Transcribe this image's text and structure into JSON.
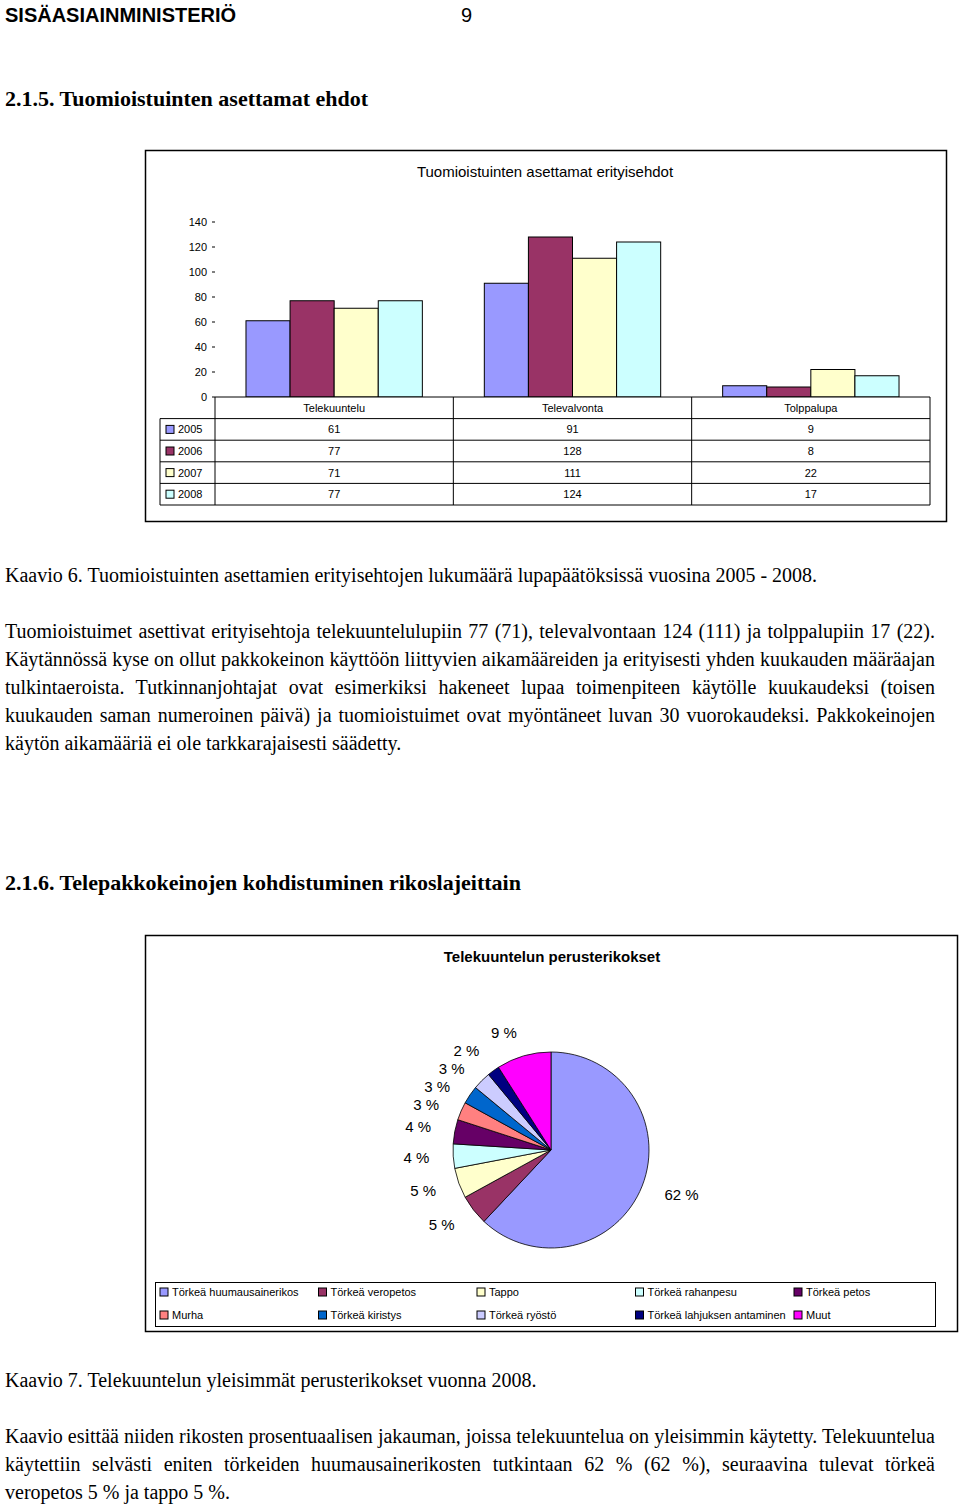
{
  "header": {
    "organization": "SISÄASIAINMINISTERIÖ",
    "page": "9"
  },
  "sections": [
    {
      "heading": "2.1.5. Tuomioistuinten asettamat ehdot",
      "caption": "Kaavio 6. Tuomioistuinten asettamien erityisehtojen lukumäärä lupapäätöksissä vuosina 2005 - 2008.",
      "paragraphs": [
        "Tuomioistuimet asettivat erityisehtoja telekuuntelulupiin 77 (71), televalvontaan 124 (111) ja tolppalupiin 17 (22). Käytännössä kyse on ollut pakkokeinon käyttöön liittyvien aikamääreiden ja erityisesti yhden kuukauden määräajan tulkintaeroista. Tutkinnanjohtajat ovat esimerkiksi hakeneet lupaa toimenpiteen käytölle kuukaudeksi (toisen kuukauden saman numeroinen päivä) ja tuomioistuimet ovat myöntäneet luvan 30 vuorokaudeksi. Pakkokeinojen käytön aikamääriä ei ole tarkkarajaisesti säädetty."
      ]
    },
    {
      "heading": "2.1.6. Telepakkokeinojen kohdistuminen rikoslajeittain",
      "caption": "Kaavio 7. Telekuuntelun yleisimmät perusterikokset vuonna 2008.",
      "paragraphs": [
        "Kaavio esittää niiden rikosten prosentuaalisen jakauman, joissa telekuuntelua on yleisimmin käytetty. Telekuuntelua käytettiin selvästi eniten törkeiden huumausainerikosten tutkintaan 62 % (62 %), seuraavina tulevat törkeä veropetos 5 % ja tappo 5 %."
      ]
    }
  ],
  "chart_data": [
    {
      "type": "bar",
      "title": "Tuomioistuinten asettamat erityisehdot",
      "categories": [
        "Telekuuntelu",
        "Televalvonta",
        "Tolppalupa"
      ],
      "series": [
        {
          "name": "2005",
          "color": "#9999ff",
          "values": [
            61,
            91,
            9
          ]
        },
        {
          "name": "2006",
          "color": "#993366",
          "values": [
            77,
            128,
            8
          ]
        },
        {
          "name": "2007",
          "color": "#ffffcc",
          "values": [
            71,
            111,
            22
          ]
        },
        {
          "name": "2008",
          "color": "#ccffff",
          "values": [
            77,
            124,
            17
          ]
        }
      ],
      "ylim": [
        0,
        140
      ],
      "yticks": [
        0,
        20,
        40,
        60,
        80,
        100,
        120,
        140
      ],
      "grid": false,
      "legend": "bottom"
    },
    {
      "type": "pie",
      "title": "Telekuuntelun perusterikokset",
      "categories": [
        "Törkeä huumausainerikos",
        "Törkeä veropetos",
        "Tappo",
        "Törkeä rahanpesu",
        "Törkeä petos",
        "Murha",
        "Törkeä kiristys",
        "Törkeä ryöstö",
        "Törkeä lahjuksen antaminen",
        "Muut"
      ],
      "values": [
        62,
        5,
        5,
        4,
        4,
        3,
        3,
        3,
        2,
        9
      ],
      "value_labels": [
        "62 %",
        "5 %",
        "5 %",
        "4 %",
        "4 %",
        "3 %",
        "3 %",
        "3 %",
        "2 %",
        "9 %"
      ],
      "colors": [
        "#9999ff",
        "#993366",
        "#ffffcc",
        "#ccffff",
        "#660066",
        "#ff8080",
        "#0066cc",
        "#ccccff",
        "#000080",
        "#ff00ff"
      ],
      "data_labels": true,
      "legend": "bottom"
    }
  ]
}
